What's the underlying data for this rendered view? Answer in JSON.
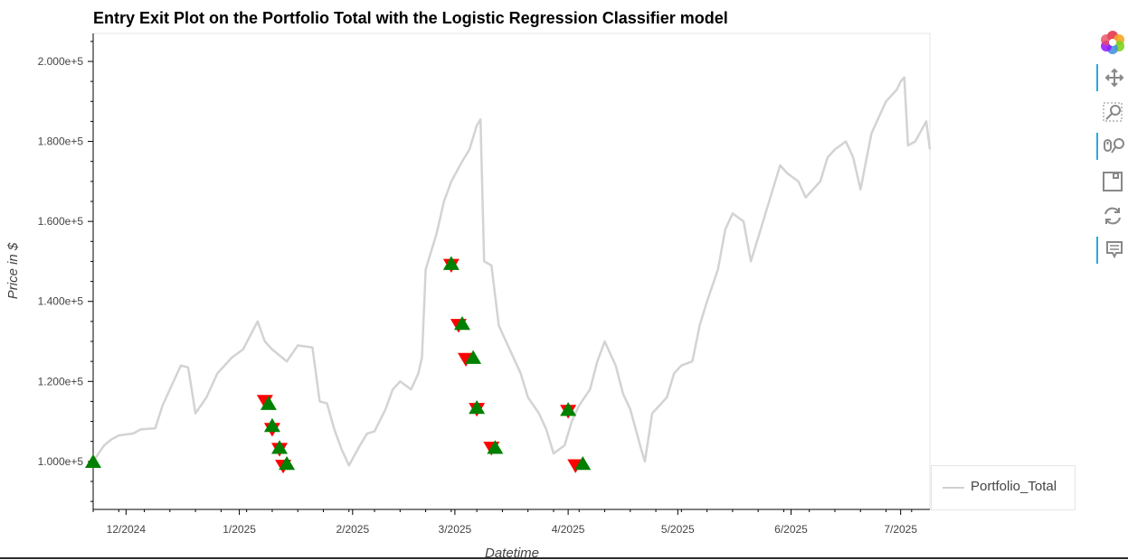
{
  "chart_data": {
    "type": "line",
    "title": "Entry Exit Plot on the Portfolio Total with the Logistic Regression Classifier model",
    "xlabel": "Datetime",
    "ylabel": "Price in $",
    "x_ticks": [
      "12/2024",
      "1/2025",
      "2/2025",
      "3/2025",
      "4/2025",
      "5/2025",
      "6/2025",
      "7/2025"
    ],
    "y_ticks": [
      {
        "value": 100000,
        "label": "1.000e+5"
      },
      {
        "value": 120000,
        "label": "1.200e+5"
      },
      {
        "value": 140000,
        "label": "1.400e+5"
      },
      {
        "value": 160000,
        "label": "1.600e+5"
      },
      {
        "value": 180000,
        "label": "1.800e+5"
      },
      {
        "value": 200000,
        "label": "2.000e+5"
      }
    ],
    "xlim": [
      "2024-11-22",
      "2025-07-01"
    ],
    "ylim": [
      88000,
      207000
    ],
    "legend_position": "bottom-right",
    "grid": false,
    "series": [
      {
        "name": "Portfolio_Total",
        "color": "#d3d3d3",
        "points": [
          [
            "2024-11-22",
            100000
          ],
          [
            "2024-11-25",
            104000
          ],
          [
            "2024-11-27",
            105500
          ],
          [
            "2024-11-29",
            106500
          ],
          [
            "2024-12-03",
            107000
          ],
          [
            "2024-12-05",
            108000
          ],
          [
            "2024-12-09",
            108300
          ],
          [
            "2024-12-11",
            114000
          ],
          [
            "2024-12-13",
            118000
          ],
          [
            "2024-12-16",
            124000
          ],
          [
            "2024-12-18",
            123500
          ],
          [
            "2024-12-20",
            112000
          ],
          [
            "2024-12-23",
            116000
          ],
          [
            "2024-12-26",
            122000
          ],
          [
            "2024-12-30",
            126000
          ],
          [
            "2025-01-02",
            128000
          ],
          [
            "2025-01-06",
            135000
          ],
          [
            "2025-01-08",
            130000
          ],
          [
            "2025-01-10",
            128000
          ],
          [
            "2025-01-14",
            125000
          ],
          [
            "2025-01-17",
            129000
          ],
          [
            "2025-01-21",
            128500
          ],
          [
            "2025-01-23",
            115000
          ],
          [
            "2025-01-25",
            114500
          ],
          [
            "2025-01-27",
            108000
          ],
          [
            "2025-01-29",
            103000
          ],
          [
            "2025-01-31",
            99000
          ],
          [
            "2025-02-03",
            104000
          ],
          [
            "2025-02-05",
            107000
          ],
          [
            "2025-02-07",
            107500
          ],
          [
            "2025-02-10",
            113000
          ],
          [
            "2025-02-12",
            118000
          ],
          [
            "2025-02-14",
            120000
          ],
          [
            "2025-02-17",
            118000
          ],
          [
            "2025-02-19",
            122000
          ],
          [
            "2025-02-20",
            126000
          ],
          [
            "2025-02-21",
            148000
          ],
          [
            "2025-02-24",
            157000
          ],
          [
            "2025-02-26",
            165000
          ],
          [
            "2025-02-28",
            170000
          ],
          [
            "2025-03-03",
            175000
          ],
          [
            "2025-03-05",
            178000
          ],
          [
            "2025-03-07",
            184000
          ],
          [
            "2025-03-08",
            185500
          ],
          [
            "2025-03-09",
            150000
          ],
          [
            "2025-03-11",
            149000
          ],
          [
            "2025-03-13",
            134000
          ],
          [
            "2025-03-15",
            130000
          ],
          [
            "2025-03-17",
            126000
          ],
          [
            "2025-03-19",
            122000
          ],
          [
            "2025-03-21",
            116000
          ],
          [
            "2025-03-24",
            112000
          ],
          [
            "2025-03-26",
            108000
          ],
          [
            "2025-03-28",
            102000
          ],
          [
            "2025-03-31",
            104000
          ],
          [
            "2025-04-02",
            110000
          ],
          [
            "2025-04-04",
            114000
          ],
          [
            "2025-04-07",
            118000
          ],
          [
            "2025-04-09",
            125000
          ],
          [
            "2025-04-11",
            130000
          ],
          [
            "2025-04-14",
            124000
          ],
          [
            "2025-04-16",
            117000
          ],
          [
            "2025-04-18",
            113000
          ],
          [
            "2025-04-21",
            103000
          ],
          [
            "2025-04-22",
            100000
          ],
          [
            "2025-04-24",
            112000
          ],
          [
            "2025-04-28",
            116000
          ],
          [
            "2025-04-30",
            122000
          ],
          [
            "2025-05-02",
            124000
          ],
          [
            "2025-05-05",
            125000
          ],
          [
            "2025-05-07",
            134000
          ],
          [
            "2025-05-09",
            140000
          ],
          [
            "2025-05-12",
            148000
          ],
          [
            "2025-05-14",
            158000
          ],
          [
            "2025-05-16",
            162000
          ],
          [
            "2025-05-19",
            160000
          ],
          [
            "2025-05-21",
            150000
          ],
          [
            "2025-05-23",
            156000
          ],
          [
            "2025-05-27",
            168000
          ],
          [
            "2025-05-29",
            174000
          ],
          [
            "2025-05-31",
            172000
          ],
          [
            "2025-06-03",
            170000
          ],
          [
            "2025-06-05",
            166000
          ],
          [
            "2025-06-09",
            170000
          ],
          [
            "2025-06-11",
            176000
          ],
          [
            "2025-06-13",
            178000
          ],
          [
            "2025-06-16",
            180000
          ],
          [
            "2025-06-18",
            176000
          ],
          [
            "2025-06-20",
            168000
          ],
          [
            "2025-06-23",
            182000
          ],
          [
            "2025-06-25",
            186000
          ],
          [
            "2025-06-27",
            190000
          ],
          [
            "2025-06-30",
            193000
          ],
          [
            "2025-07-01",
            195000
          ],
          [
            "2025-07-02",
            196000
          ],
          [
            "2025-07-03",
            179000
          ],
          [
            "2025-07-05",
            180000
          ],
          [
            "2025-07-08",
            185000
          ],
          [
            "2025-07-09",
            178000
          ]
        ]
      },
      {
        "name": "entry",
        "marker": "triangle-up",
        "color": "#008000",
        "points": [
          [
            "2024-11-22",
            100000
          ],
          [
            "2025-01-09",
            114500
          ],
          [
            "2025-01-10",
            109000
          ],
          [
            "2025-01-12",
            103500
          ],
          [
            "2025-01-14",
            99500
          ],
          [
            "2025-02-28",
            149500
          ],
          [
            "2025-03-03",
            134500
          ],
          [
            "2025-03-06",
            126000
          ],
          [
            "2025-03-07",
            113500
          ],
          [
            "2025-03-12",
            103500
          ],
          [
            "2025-04-01",
            113000
          ],
          [
            "2025-04-05",
            99500
          ]
        ]
      },
      {
        "name": "exit",
        "marker": "triangle-down",
        "color": "#ff0000",
        "points": [
          [
            "2025-01-08",
            115000
          ],
          [
            "2025-01-10",
            108000
          ],
          [
            "2025-01-12",
            103000
          ],
          [
            "2025-01-13",
            98800
          ],
          [
            "2025-02-28",
            149000
          ],
          [
            "2025-03-02",
            134000
          ],
          [
            "2025-03-04",
            125500
          ],
          [
            "2025-03-07",
            113000
          ],
          [
            "2025-03-11",
            103300
          ],
          [
            "2025-04-01",
            112500
          ],
          [
            "2025-04-03",
            98900
          ]
        ]
      }
    ]
  },
  "legend": {
    "label": "Portfolio_Total"
  },
  "toolbar": {
    "tools": [
      "bokeh-logo-icon",
      "pan-icon",
      "box-zoom-icon",
      "wheel-zoom-icon",
      "save-icon",
      "reset-icon",
      "hover-icon"
    ]
  }
}
